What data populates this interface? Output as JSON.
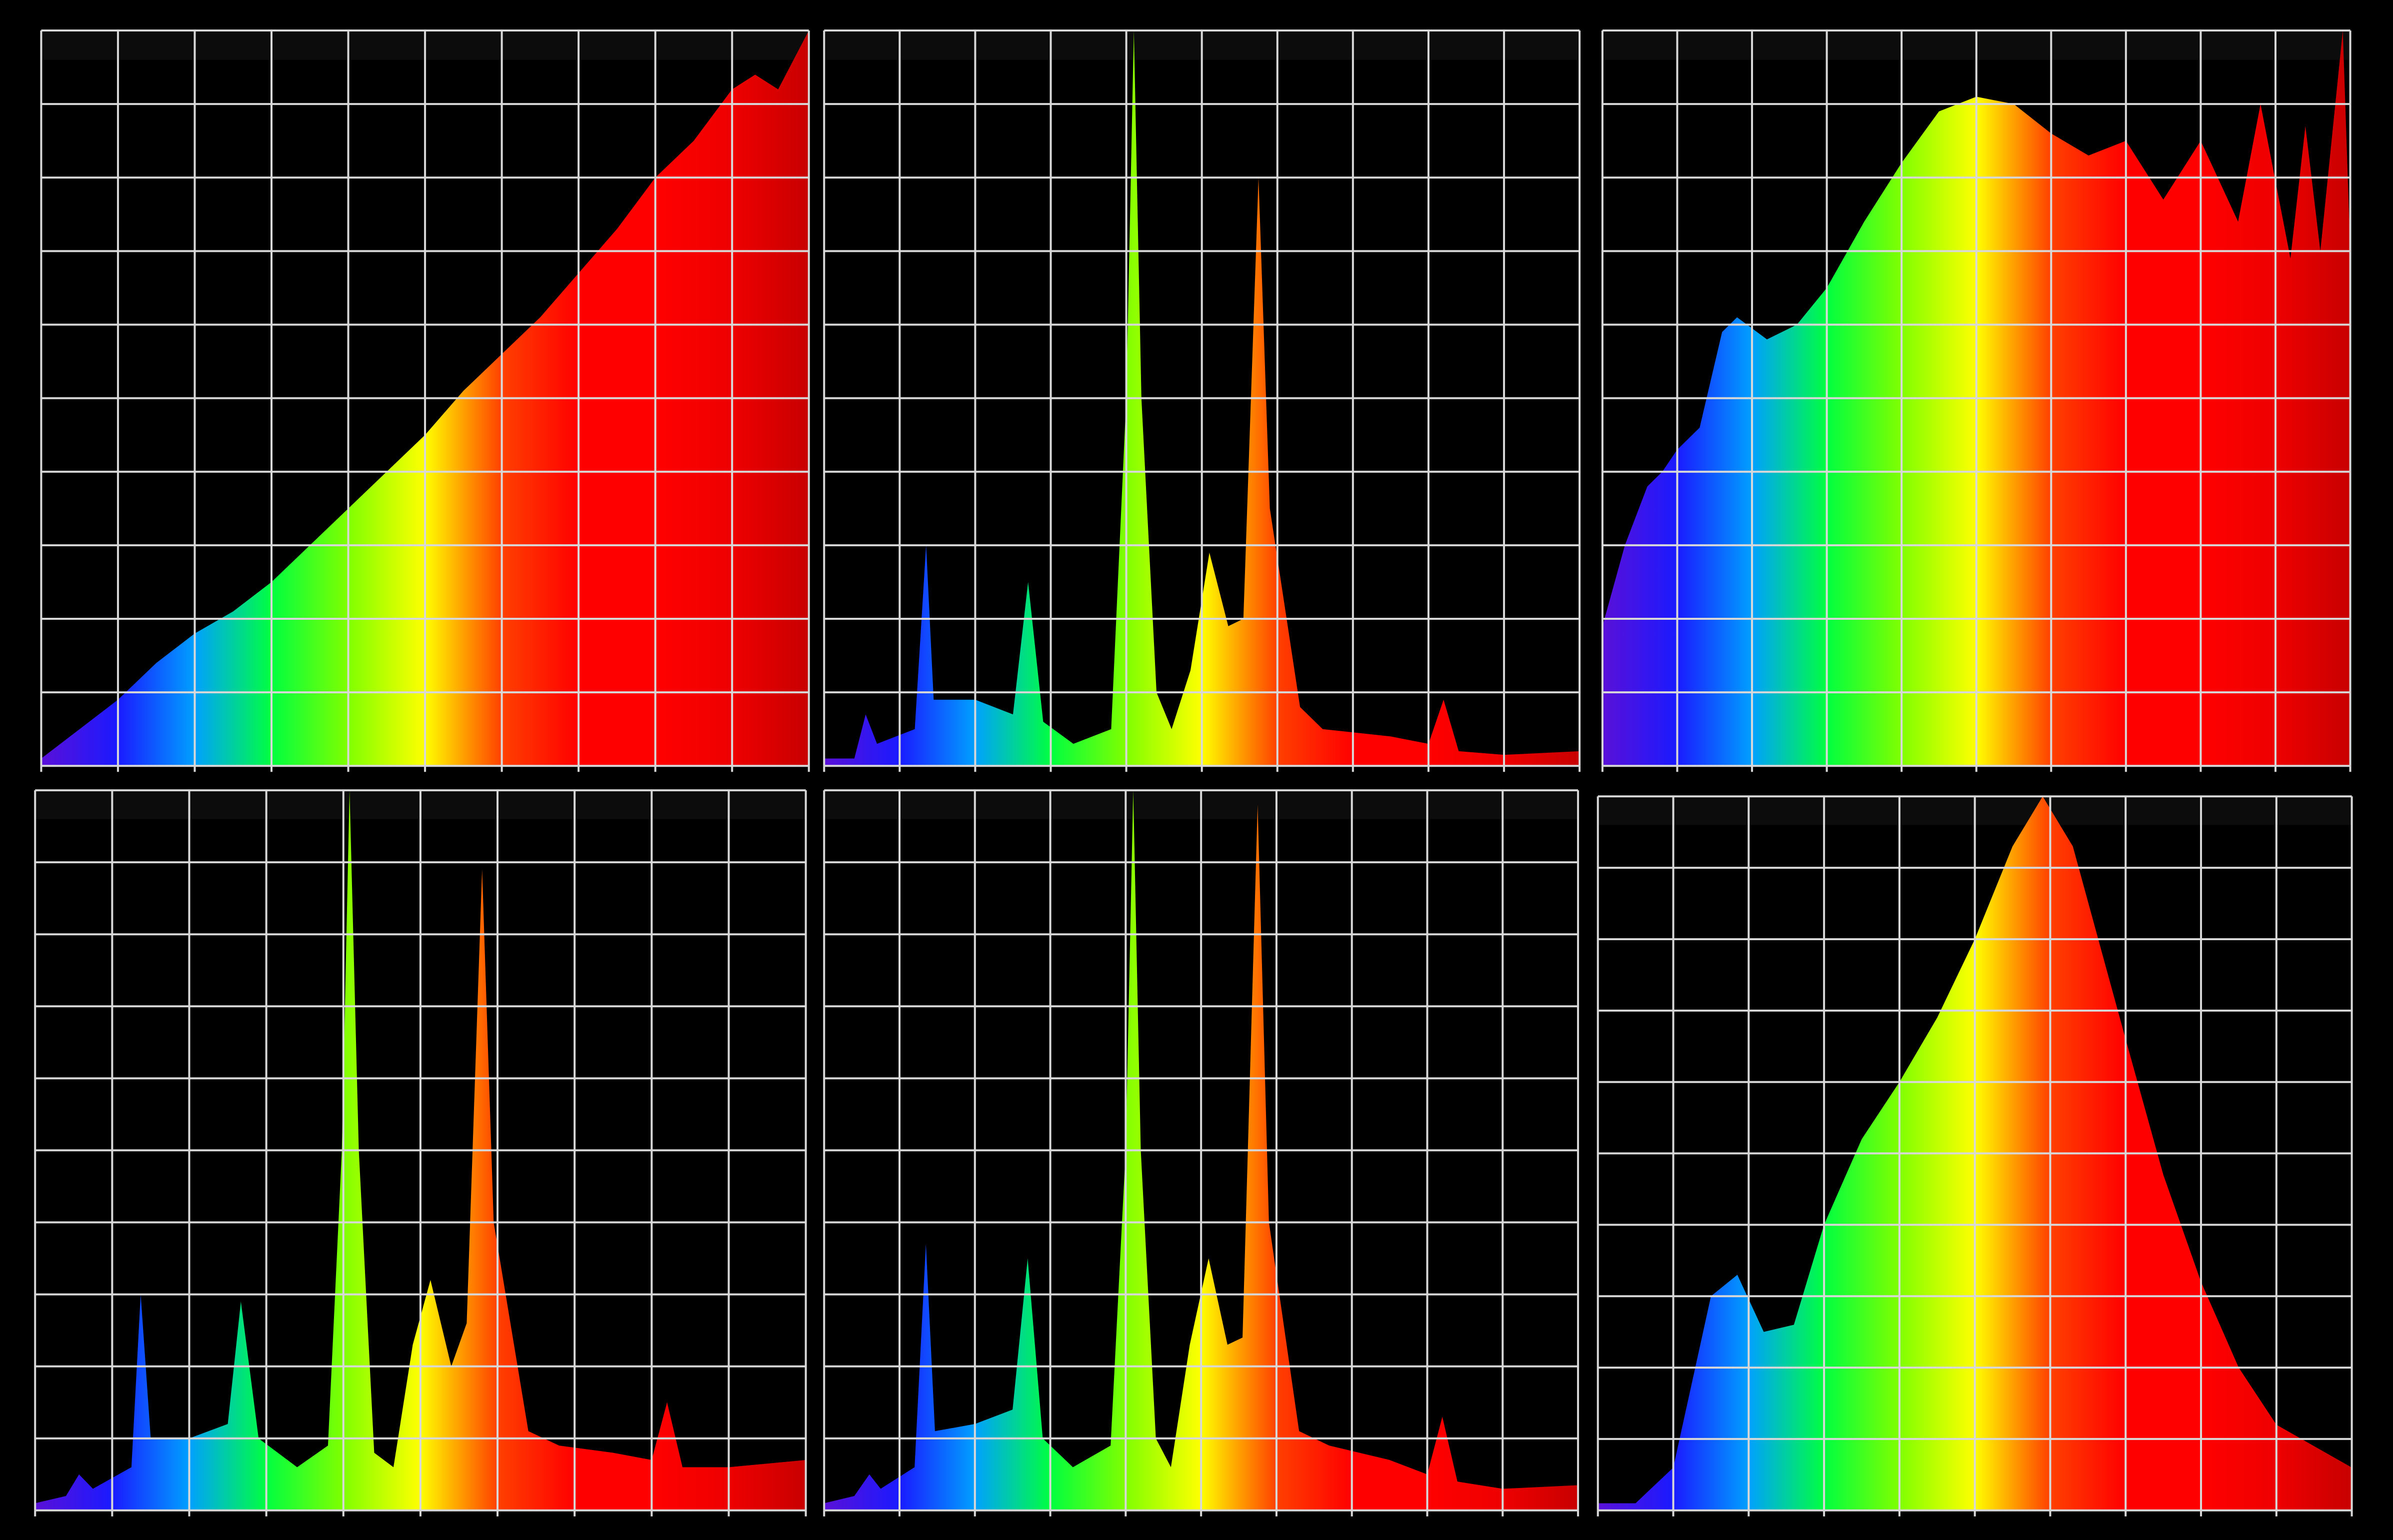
{
  "chart_data": [
    {
      "type": "area",
      "xlim": [
        0,
        10
      ],
      "ylim": [
        0,
        10
      ],
      "xticks": [
        0,
        1,
        2,
        3,
        4,
        5,
        6,
        7,
        8,
        9,
        10
      ],
      "yticks": [
        0,
        1,
        2,
        3,
        4,
        5,
        6,
        7,
        8,
        9,
        10
      ],
      "grid": true,
      "gradient": [
        "#5a10d8",
        "#1a1aff",
        "#00a0ff",
        "#00ff40",
        "#80ff00",
        "#ffff00",
        "#ff4000",
        "#ff0000",
        "#ff0000",
        "#ee0000",
        "#c80000"
      ],
      "x": [
        0,
        0.5,
        1,
        1.5,
        2,
        2.5,
        3,
        3.5,
        4,
        4.5,
        5,
        5.5,
        6,
        6.5,
        7,
        7.5,
        8,
        8.5,
        9,
        9.3,
        9.6,
        10
      ],
      "series": [
        {
          "values": [
            0.1,
            0.5,
            0.9,
            1.4,
            1.8,
            2.1,
            2.5,
            3.0,
            3.5,
            4.0,
            4.5,
            5.1,
            5.6,
            6.1,
            6.7,
            7.3,
            8.0,
            8.5,
            9.2,
            9.4,
            9.2,
            10
          ]
        }
      ]
    },
    {
      "type": "area",
      "xlim": [
        0,
        10
      ],
      "ylim": [
        0,
        10
      ],
      "xticks": [
        0,
        1,
        2,
        3,
        4,
        5,
        6,
        7,
        8,
        9,
        10
      ],
      "yticks": [
        0,
        1,
        2,
        3,
        4,
        5,
        6,
        7,
        8,
        9,
        10
      ],
      "grid": true,
      "gradient": [
        "#5a10d8",
        "#1a1aff",
        "#00a0ff",
        "#00ff40",
        "#80ff00",
        "#ffff00",
        "#ff4000",
        "#ff0000",
        "#ff0000",
        "#ee0000",
        "#c80000"
      ],
      "x": [
        0,
        0.4,
        0.55,
        0.7,
        1.2,
        1.35,
        1.45,
        2.0,
        2.5,
        2.7,
        2.9,
        3.3,
        3.8,
        4.0,
        4.1,
        4.2,
        4.4,
        4.6,
        4.85,
        5.1,
        5.35,
        5.55,
        5.75,
        5.9,
        6.3,
        6.6,
        7.5,
        8.0,
        8.2,
        8.4,
        9,
        10
      ],
      "series": [
        {
          "values": [
            0.1,
            0.1,
            0.7,
            0.3,
            0.5,
            3.0,
            0.9,
            0.9,
            0.7,
            2.5,
            0.6,
            0.3,
            0.5,
            5,
            10,
            5,
            1.0,
            0.5,
            1.3,
            2.9,
            1.9,
            2.0,
            8.0,
            3.5,
            0.8,
            0.5,
            0.4,
            0.3,
            0.9,
            0.2,
            0.15,
            0.2
          ]
        }
      ]
    },
    {
      "type": "area",
      "xlim": [
        0,
        10
      ],
      "ylim": [
        0,
        10
      ],
      "xticks": [
        0,
        1,
        2,
        3,
        4,
        5,
        6,
        7,
        8,
        9,
        10
      ],
      "yticks": [
        0,
        1,
        2,
        3,
        4,
        5,
        6,
        7,
        8,
        9,
        10
      ],
      "grid": true,
      "gradient": [
        "#5a10d8",
        "#1a1aff",
        "#00a0ff",
        "#00ff40",
        "#80ff00",
        "#ffff00",
        "#ff4000",
        "#ff0000",
        "#ff0000",
        "#ee0000",
        "#c80000"
      ],
      "x": [
        0,
        0.3,
        0.6,
        0.8,
        1.0,
        1.3,
        1.6,
        1.8,
        2.2,
        2.6,
        3,
        3.5,
        4,
        4.5,
        5,
        5.5,
        6,
        6.5,
        7,
        7.5,
        8,
        8.5,
        8.8,
        9.2,
        9.4,
        9.6,
        9.9,
        10
      ],
      "series": [
        {
          "values": [
            1.9,
            3.0,
            3.8,
            4.0,
            4.3,
            4.6,
            5.9,
            6.1,
            5.8,
            6.0,
            6.5,
            7.4,
            8.2,
            8.9,
            9.1,
            9.0,
            8.6,
            8.3,
            8.5,
            7.7,
            8.5,
            7.4,
            9.0,
            6.9,
            8.7,
            7.0,
            10,
            7.0
          ]
        }
      ]
    },
    {
      "type": "area",
      "xlim": [
        0,
        10
      ],
      "ylim": [
        0,
        10
      ],
      "xticks": [
        0,
        1,
        2,
        3,
        4,
        5,
        6,
        7,
        8,
        9,
        10
      ],
      "yticks": [
        0,
        1,
        2,
        3,
        4,
        5,
        6,
        7,
        8,
        9,
        10
      ],
      "grid": true,
      "gradient": [
        "#5a10d8",
        "#1a1aff",
        "#00a0ff",
        "#00ff40",
        "#80ff00",
        "#ffff00",
        "#ff4000",
        "#ff0000",
        "#ff0000",
        "#ee0000",
        "#c80000"
      ],
      "x": [
        0,
        0.4,
        0.57,
        0.75,
        1.25,
        1.37,
        1.5,
        2.0,
        2.5,
        2.67,
        2.9,
        3.4,
        3.8,
        3.98,
        4.08,
        4.2,
        4.4,
        4.65,
        4.9,
        5.13,
        5.4,
        5.6,
        5.8,
        5.95,
        6.4,
        6.8,
        7.5,
        8.0,
        8.2,
        8.4,
        9,
        10
      ],
      "series": [
        {
          "values": [
            0.1,
            0.2,
            0.5,
            0.3,
            0.6,
            3.0,
            1.0,
            1.0,
            1.2,
            2.9,
            1.0,
            0.6,
            0.9,
            5,
            10,
            5,
            0.8,
            0.6,
            2.3,
            3.2,
            2.0,
            2.6,
            8.9,
            4,
            1.1,
            0.9,
            0.8,
            0.7,
            1.5,
            0.6,
            0.6,
            0.7
          ]
        }
      ]
    },
    {
      "type": "area",
      "xlim": [
        0,
        10
      ],
      "ylim": [
        0,
        10
      ],
      "xticks": [
        0,
        1,
        2,
        3,
        4,
        5,
        6,
        7,
        8,
        9,
        10
      ],
      "yticks": [
        0,
        1,
        2,
        3,
        4,
        5,
        6,
        7,
        8,
        9,
        10
      ],
      "grid": true,
      "gradient": [
        "#5a10d8",
        "#1a1aff",
        "#00a0ff",
        "#00ff40",
        "#80ff00",
        "#ffff00",
        "#ff4000",
        "#ff0000",
        "#ff0000",
        "#ee0000",
        "#c80000"
      ],
      "x": [
        0,
        0.4,
        0.6,
        0.75,
        1.2,
        1.35,
        1.47,
        2.0,
        2.5,
        2.7,
        2.9,
        3.3,
        3.8,
        4.0,
        4.1,
        4.2,
        4.4,
        4.6,
        4.85,
        5.1,
        5.35,
        5.55,
        5.75,
        5.9,
        6.3,
        6.7,
        7.5,
        8.0,
        8.2,
        8.4,
        9,
        10
      ],
      "series": [
        {
          "values": [
            0.1,
            0.2,
            0.5,
            0.3,
            0.6,
            3.7,
            1.1,
            1.2,
            1.4,
            3.5,
            1.0,
            0.6,
            0.9,
            5,
            10,
            5,
            1.0,
            0.6,
            2.3,
            3.5,
            2.3,
            2.4,
            9.8,
            4.0,
            1.1,
            0.9,
            0.7,
            0.5,
            1.3,
            0.4,
            0.3,
            0.35
          ]
        }
      ]
    },
    {
      "type": "area",
      "xlim": [
        0,
        10
      ],
      "ylim": [
        0,
        10
      ],
      "xticks": [
        0,
        1,
        2,
        3,
        4,
        5,
        6,
        7,
        8,
        9,
        10
      ],
      "yticks": [
        0,
        1,
        2,
        3,
        4,
        5,
        6,
        7,
        8,
        9,
        10
      ],
      "grid": true,
      "gradient": [
        "#5a10d8",
        "#1a1aff",
        "#00a0ff",
        "#00ff40",
        "#80ff00",
        "#ffff00",
        "#ff4000",
        "#ff0000",
        "#ff0000",
        "#ee0000",
        "#c80000"
      ],
      "x": [
        0,
        0.5,
        1,
        1.5,
        1.85,
        2.2,
        2.6,
        3,
        3.5,
        4,
        4.5,
        5,
        5.5,
        5.9,
        6.3,
        7,
        7.5,
        8,
        8.5,
        9,
        9.5,
        10
      ],
      "series": [
        {
          "values": [
            0.1,
            0.1,
            0.6,
            3.0,
            3.3,
            2.5,
            2.6,
            4,
            5.2,
            6.0,
            6.9,
            8.0,
            9.3,
            10,
            9.3,
            6.6,
            4.7,
            3.2,
            2.0,
            1.2,
            0.9,
            0.6
          ]
        }
      ]
    }
  ]
}
